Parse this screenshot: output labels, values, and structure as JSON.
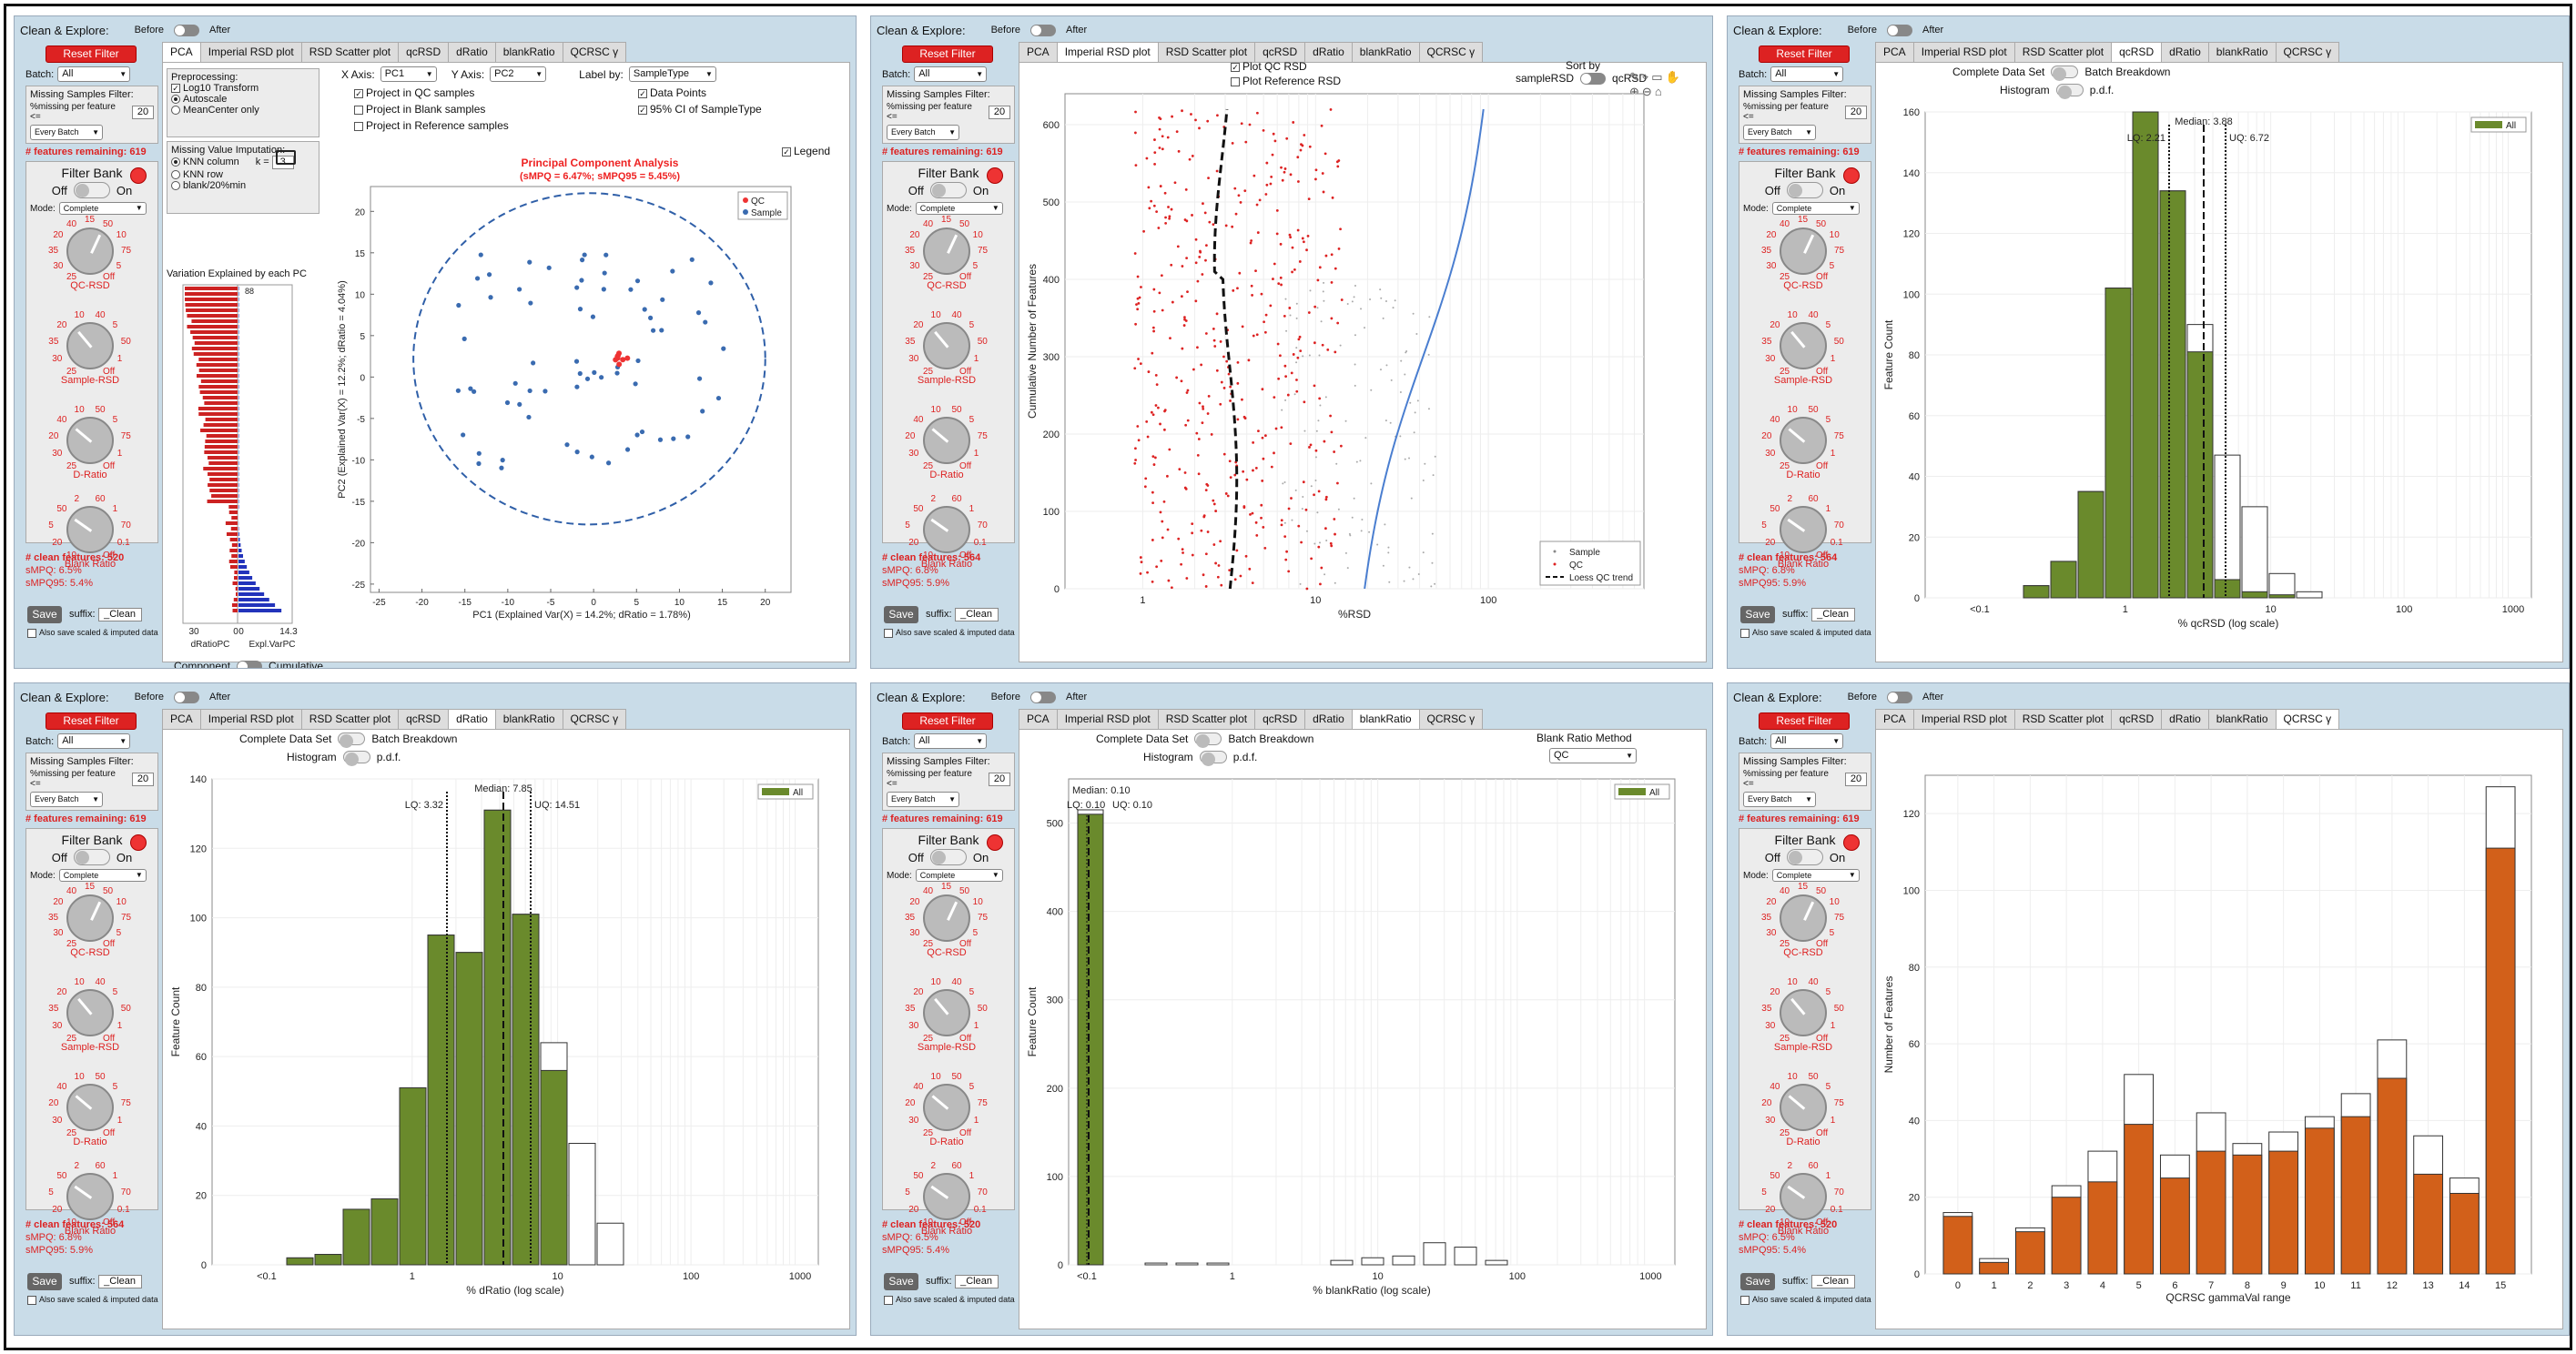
{
  "common": {
    "clean_explore": "Clean & Explore:",
    "before": "Before",
    "after": "After",
    "reset_filter": "Reset Filter",
    "batch_label": "Batch:",
    "batch_value": "All",
    "missing_title": "Missing Samples Filter:",
    "missing_label": "%missing per feature <=",
    "missing_value": "20",
    "every_batch": "Every Batch",
    "filter_bank": "Filter Bank",
    "off": "Off",
    "on": "On",
    "mode_label": "Mode:",
    "mode_value": "Complete",
    "knob_labels": [
      "QC-RSD",
      "Sample-RSD",
      "D-Ratio",
      "Blank Ratio"
    ],
    "knob_ticks": [
      [
        "25",
        "30",
        "35",
        "20",
        "40",
        "15",
        "50",
        "10",
        "75",
        "5",
        "Off"
      ],
      [
        "25",
        "30",
        "35",
        "20",
        "10",
        "40",
        "5",
        "50",
        "1",
        "Off"
      ],
      [
        "25",
        "30",
        "20",
        "40",
        "10",
        "50",
        "5",
        "75",
        "1",
        "Off"
      ],
      [
        "10",
        "20",
        "5",
        "50",
        "2",
        "60",
        "1",
        "70",
        "0.1",
        "Off"
      ]
    ],
    "save": "Save",
    "suffix_label": "suffix:",
    "suffix_value": "_Clean",
    "also_save": "Also save scaled & imputed data",
    "tabs": [
      "PCA",
      "Imperial RSD plot",
      "RSD Scatter plot",
      "qcRSD",
      "dRatio",
      "blankRatio",
      "QCRSC γ"
    ],
    "features_remaining": "# features remaining: 619"
  },
  "panels": [
    {
      "active_tab": 0,
      "clean": "# clean features: 520",
      "smpq": "sMPQ: 6.5%",
      "smpq95": "sMPQ95: 5.4%"
    },
    {
      "active_tab": 1,
      "clean": "# clean features: 564",
      "smpq": "sMPQ: 6.8%",
      "smpq95": "sMPQ95: 5.9%"
    },
    {
      "active_tab": 3,
      "clean": "# clean features: 564",
      "smpq": "sMPQ: 6.8%",
      "smpq95": "sMPQ95: 5.9%"
    },
    {
      "active_tab": 4,
      "clean": "# clean features: 564",
      "smpq": "sMPQ: 6.8%",
      "smpq95": "sMPQ95: 5.9%"
    },
    {
      "active_tab": 5,
      "clean": "# clean features: 520",
      "smpq": "sMPQ: 6.5%",
      "smpq95": "sMPQ95: 5.4%"
    },
    {
      "active_tab": 6,
      "clean": "# clean features: 520",
      "smpq": "sMPQ: 6.5%",
      "smpq95": "sMPQ95: 5.4%"
    }
  ],
  "pca": {
    "preprocessing": "Preprocessing:",
    "log10": "Log10 Transform",
    "autoscale": "Autoscale",
    "meancenter": "MeanCenter only",
    "missing_impute": "Missing Value Imputation:",
    "knn_col": "KNN column",
    "knn_row": "KNN row",
    "blank20": "blank/20%min",
    "k_label": "k =",
    "k_value": "3",
    "xaxis_label": "X Axis:",
    "xaxis": "PC1",
    "yaxis_label": "Y Axis:",
    "yaxis": "PC2",
    "labelby_label": "Label by:",
    "labelby": "SampleType",
    "proj_qc": "Project in QC samples",
    "proj_blank": "Project in Blank samples",
    "proj_ref": "Project in Reference samples",
    "data_points": "Data Points",
    "ci95": "95% CI of SampleType",
    "legend": "Legend",
    "title": "Principal Component Analysis",
    "subtitle": "(sMPQ = 6.47%; sMPQ95 = 5.45%)",
    "variation_title": "Variation Explained by each PC",
    "xlabel": "PC1 (Explained Var(X) = 14.2%; dRatio = 1.78%)",
    "ylabel": "PC2 (Explained Var(X) = 12.2%; dRatio = 4.04%)",
    "legend_qc": "QC",
    "legend_sample": "Sample",
    "component": "Component",
    "cumulative": "Cumulative",
    "dratio_pc": "dRatioPC",
    "explvar_pc": "Expl.VarPC",
    "bar_top_value": "88",
    "left_axis": [
      "30",
      "0"
    ],
    "right_axis": [
      "0",
      "14.3"
    ],
    "xticks": [
      "-25",
      "-20",
      "-15",
      "-10",
      "-5",
      "0",
      "5",
      "10",
      "15",
      "20"
    ],
    "yticks": [
      "20",
      "15",
      "10",
      "5",
      "0",
      "-5",
      "-10",
      "-15",
      "-20",
      "-25"
    ]
  },
  "imperial": {
    "plot_qc": "Plot QC RSD",
    "plot_ref": "Plot Reference RSD",
    "sort_by": "Sort by",
    "sample_rsd": "sampleRSD",
    "qc_rsd": "qcRSD",
    "xlabel": "%RSD",
    "ylabel": "Cumulative Number of Features",
    "yticks": [
      "600",
      "500",
      "400",
      "300",
      "200",
      "100",
      "0"
    ],
    "xticks": [
      "1",
      "10",
      "100"
    ],
    "legend": [
      "Sample",
      "QC",
      "Loess QC trend"
    ]
  },
  "histcommon": {
    "complete": "Complete Data Set",
    "batch_breakdown": "Batch Breakdown",
    "histogram": "Histogram",
    "pdf": "p.d.f.",
    "legend_all": "All",
    "ylabel": "Feature Count",
    "log_xticks": [
      "<0.1",
      "1",
      "10",
      "100",
      "1000"
    ]
  },
  "chart_data": [
    {
      "type": "bar",
      "title": "",
      "xlabel": "% qcRSD (log scale)",
      "ylabel": "Feature Count",
      "ylim": [
        0,
        160
      ],
      "yticks": [
        "160",
        "140",
        "120",
        "100",
        "80",
        "60",
        "40",
        "20",
        "0"
      ],
      "median": "Median: 3.88",
      "lq": "LQ: 2.21",
      "uq": "UQ: 6.72",
      "series": [
        {
          "name": "All",
          "values": [
            4,
            12,
            35,
            102,
            160,
            134,
            81,
            6,
            2,
            1,
            0,
            0
          ]
        },
        {
          "name": "",
          "values": [
            4,
            12,
            35,
            102,
            160,
            134,
            90,
            47,
            30,
            8,
            2,
            0
          ]
        }
      ],
      "bin_centers": [
        0.2,
        0.35,
        0.6,
        1.0,
        1.8,
        3.2,
        5.6,
        10,
        18,
        32,
        56,
        100
      ]
    },
    {
      "type": "bar",
      "title": "",
      "xlabel": "% dRatio (log scale)",
      "ylabel": "Feature Count",
      "ylim": [
        0,
        140
      ],
      "yticks": [
        "140",
        "120",
        "100",
        "80",
        "60",
        "40",
        "20",
        "0"
      ],
      "median": "Median: 7.85",
      "lq": "LQ: 3.32",
      "uq": "UQ: 14.51",
      "series": [
        {
          "name": "All",
          "values": [
            2,
            3,
            16,
            19,
            51,
            95,
            90,
            131,
            101,
            56,
            0,
            0
          ]
        },
        {
          "name": "",
          "values": [
            2,
            3,
            16,
            19,
            51,
            95,
            90,
            131,
            101,
            64,
            35,
            12
          ]
        }
      ]
    },
    {
      "type": "bar",
      "title": "",
      "xlabel": "% blankRatio (log scale)",
      "ylabel": "Feature Count",
      "ylim": [
        0,
        550
      ],
      "yticks": [
        "500",
        "400",
        "300",
        "200",
        "100",
        "0"
      ],
      "median": "Median: 0.10",
      "lq": "LQ: 0.10",
      "uq": "UQ: 0.10",
      "blank_method_label": "Blank Ratio Method",
      "blank_method": "QC",
      "series": [
        {
          "name": "All",
          "values": [
            510,
            0,
            0,
            0,
            0,
            0,
            0,
            0,
            0,
            0,
            0,
            0,
            0,
            0,
            0,
            0
          ]
        },
        {
          "name": "",
          "values": [
            515,
            2,
            2,
            2,
            0,
            0,
            0,
            5,
            8,
            10,
            25,
            20,
            5,
            0,
            0,
            0
          ]
        }
      ],
      "xticks": [
        "<0.1",
        "1",
        "10",
        "100",
        "1000"
      ]
    },
    {
      "type": "bar",
      "title": "",
      "xlabel": "QCRSC gammaVal range",
      "ylabel": "Number of Features",
      "ylim": [
        0,
        130
      ],
      "yticks": [
        "120",
        "100",
        "80",
        "60",
        "40",
        "20",
        "0"
      ],
      "categories": [
        "0",
        "1",
        "2",
        "3",
        "4",
        "5",
        "6",
        "7",
        "8",
        "9",
        "10",
        "11",
        "12",
        "13",
        "14",
        "15"
      ],
      "series": [
        {
          "name": "",
          "values": [
            15,
            3,
            11,
            20,
            24,
            39,
            25,
            32,
            31,
            32,
            38,
            41,
            51,
            26,
            21,
            111
          ]
        },
        {
          "name": "",
          "values": [
            16,
            4,
            12,
            23,
            32,
            52,
            31,
            42,
            34,
            37,
            41,
            47,
            61,
            36,
            25,
            127
          ]
        }
      ]
    }
  ]
}
